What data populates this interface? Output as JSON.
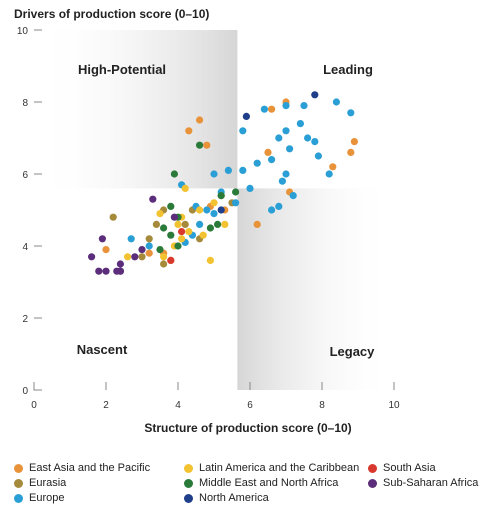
{
  "chart_data": {
    "type": "scatter",
    "title": "",
    "ylabel": "Drivers of production score (0–10)",
    "xlabel": "Structure of production score (0–10)",
    "xlim": [
      0,
      10
    ],
    "ylim": [
      0,
      10
    ],
    "x_ticks": [
      "0",
      "2",
      "4",
      "6",
      "8",
      "10"
    ],
    "y_ticks": [
      "0",
      "2",
      "4",
      "6",
      "8",
      "10"
    ],
    "thresholds": {
      "x": 5.65,
      "y": 5.6
    },
    "grid": false,
    "legend_position": "bottom",
    "quadrants": {
      "top_left": "High-Potential",
      "top_right": "Leading",
      "bottom_left": "Nascent",
      "bottom_right": "Legacy"
    },
    "series": [
      {
        "name": "East Asia and the Pacific",
        "color": "#e8923a",
        "points": [
          [
            4.3,
            7.2
          ],
          [
            4.6,
            7.5
          ],
          [
            4.8,
            6.8
          ],
          [
            7.0,
            8.0
          ],
          [
            6.6,
            7.8
          ],
          [
            6.5,
            6.6
          ],
          [
            8.8,
            6.6
          ],
          [
            8.9,
            6.9
          ],
          [
            8.3,
            6.2
          ],
          [
            7.1,
            5.5
          ],
          [
            6.2,
            4.6
          ],
          [
            5.3,
            5.0
          ],
          [
            3.2,
            3.8
          ],
          [
            3.6,
            3.8
          ],
          [
            3.8,
            3.6
          ],
          [
            2.0,
            3.9
          ],
          [
            4.9,
            5.1
          ]
        ]
      },
      {
        "name": "Eurasia",
        "color": "#a68a3c",
        "points": [
          [
            2.2,
            4.8
          ],
          [
            3.2,
            4.2
          ],
          [
            3.4,
            4.6
          ],
          [
            3.6,
            5.0
          ],
          [
            4.2,
            4.6
          ],
          [
            4.4,
            5.0
          ],
          [
            4.6,
            4.2
          ],
          [
            5.2,
            5.4
          ],
          [
            5.5,
            5.2
          ],
          [
            3.6,
            3.5
          ],
          [
            3.0,
            3.7
          ]
        ]
      },
      {
        "name": "Europe",
        "color": "#2a9fd6",
        "points": [
          [
            5.8,
            7.2
          ],
          [
            6.4,
            7.8
          ],
          [
            7.0,
            7.9
          ],
          [
            7.5,
            7.9
          ],
          [
            8.4,
            8.0
          ],
          [
            8.8,
            7.7
          ],
          [
            7.4,
            7.4
          ],
          [
            7.0,
            7.2
          ],
          [
            6.8,
            7.0
          ],
          [
            7.6,
            7.0
          ],
          [
            7.8,
            6.9
          ],
          [
            7.1,
            6.7
          ],
          [
            6.6,
            6.4
          ],
          [
            7.9,
            6.5
          ],
          [
            6.2,
            6.3
          ],
          [
            7.0,
            6.0
          ],
          [
            6.9,
            5.8
          ],
          [
            8.2,
            6.0
          ],
          [
            6.0,
            5.6
          ],
          [
            5.8,
            6.1
          ],
          [
            5.4,
            6.1
          ],
          [
            5.0,
            6.0
          ],
          [
            4.1,
            5.7
          ],
          [
            5.2,
            5.5
          ],
          [
            5.6,
            5.2
          ],
          [
            4.8,
            5.0
          ],
          [
            4.6,
            4.6
          ],
          [
            4.4,
            4.3
          ],
          [
            4.2,
            4.1
          ],
          [
            3.2,
            4.0
          ],
          [
            2.7,
            4.2
          ],
          [
            6.8,
            5.1
          ],
          [
            7.2,
            5.4
          ],
          [
            6.6,
            5.0
          ],
          [
            5.0,
            4.9
          ],
          [
            4.5,
            5.1
          ]
        ]
      },
      {
        "name": "Latin America and the Caribbean",
        "color": "#f2c230",
        "points": [
          [
            4.2,
            5.6
          ],
          [
            4.6,
            5.0
          ],
          [
            4.1,
            4.8
          ],
          [
            4.0,
            4.6
          ],
          [
            4.3,
            4.4
          ],
          [
            4.7,
            4.3
          ],
          [
            4.1,
            4.2
          ],
          [
            3.9,
            4.0
          ],
          [
            3.6,
            3.7
          ],
          [
            4.9,
            3.6
          ],
          [
            2.6,
            3.7
          ],
          [
            3.5,
            4.9
          ],
          [
            5.0,
            5.2
          ],
          [
            5.3,
            4.6
          ]
        ]
      },
      {
        "name": "Middle East and North Africa",
        "color": "#2a7a3a",
        "points": [
          [
            3.9,
            6.0
          ],
          [
            4.6,
            6.8
          ],
          [
            5.6,
            5.5
          ],
          [
            5.2,
            5.4
          ],
          [
            3.8,
            5.1
          ],
          [
            4.0,
            4.8
          ],
          [
            3.6,
            4.5
          ],
          [
            3.8,
            4.3
          ],
          [
            4.9,
            4.5
          ],
          [
            5.1,
            4.6
          ],
          [
            3.5,
            3.9
          ],
          [
            4.0,
            4.0
          ]
        ]
      },
      {
        "name": "North America",
        "color": "#1f3f8a",
        "points": [
          [
            7.8,
            8.2
          ],
          [
            5.9,
            7.6
          ],
          [
            5.2,
            5.0
          ]
        ]
      },
      {
        "name": "South Asia",
        "color": "#d9382e",
        "points": [
          [
            3.8,
            3.6
          ],
          [
            4.1,
            4.4
          ]
        ]
      },
      {
        "name": "Sub-Saharan Africa",
        "color": "#5b2d7a",
        "points": [
          [
            1.6,
            3.7
          ],
          [
            1.9,
            4.2
          ],
          [
            1.8,
            3.3
          ],
          [
            2.0,
            3.3
          ],
          [
            2.3,
            3.3
          ],
          [
            2.4,
            3.3
          ],
          [
            2.4,
            3.5
          ],
          [
            2.8,
            3.7
          ],
          [
            3.0,
            3.9
          ],
          [
            3.3,
            5.3
          ],
          [
            2.4,
            3.3
          ],
          [
            3.9,
            4.8
          ]
        ]
      }
    ]
  }
}
